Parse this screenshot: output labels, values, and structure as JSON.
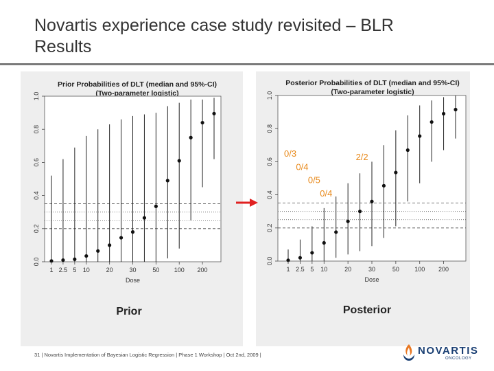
{
  "slide": {
    "title_line1": "Novartis experience case study revisited – BLR",
    "title_line2": "Results",
    "footer": "31 | Novartis Implementation of Bayesian Logistic Regression | Phase 1 Workshop | Oct 2nd, 2009 |",
    "logo_text": "NOVARTIS",
    "logo_sub": "ONCOLOGY",
    "colors": {
      "title": "#333333",
      "arrow": "#e02020",
      "annotation": "#e8891a",
      "logo": "#1a3f73",
      "logo_mark": "#e87722"
    }
  },
  "chart_data": [
    {
      "type": "scatter",
      "name": "prior",
      "title": "Prior Probabilities of DLT (median and 95%-CI)",
      "subtitle": "(Two-parameter logistic)",
      "caption": "Prior",
      "xlabel": "Dose",
      "ylabel": "",
      "categories": [
        "1",
        "2.5",
        "5",
        "10",
        "15",
        "20",
        "25",
        "30",
        "40",
        "50",
        "75",
        "100",
        "150",
        "200",
        "250"
      ],
      "x_tick_labels": [
        "1",
        "2.5",
        "5",
        "10",
        "20",
        "30",
        "50",
        "100",
        "200"
      ],
      "medians": [
        0.005,
        0.01,
        0.015,
        0.035,
        0.065,
        0.1,
        0.145,
        0.18,
        0.265,
        0.335,
        0.49,
        0.61,
        0.75,
        0.84,
        0.895
      ],
      "lower": [
        0.0,
        0.0,
        0.0,
        0.0,
        0.0,
        0.0,
        0.0,
        0.0,
        0.0,
        0.0,
        0.02,
        0.08,
        0.25,
        0.45,
        0.62
      ],
      "upper": [
        0.52,
        0.62,
        0.69,
        0.76,
        0.8,
        0.83,
        0.86,
        0.88,
        0.89,
        0.9,
        0.94,
        0.96,
        0.98,
        0.98,
        0.99
      ],
      "ylim": [
        0.0,
        1.0
      ],
      "yticks": [
        "0.0",
        "0.2",
        "0.4",
        "0.6",
        "0.8",
        "1.0"
      ],
      "ref_lines": {
        "dashed": [
          0.2,
          0.35
        ],
        "dotted": [
          0.25,
          0.3
        ]
      },
      "annotations": []
    },
    {
      "type": "scatter",
      "name": "posterior",
      "title": "Posterior Probabilities of DLT (median and 95%-CI)",
      "subtitle": "(Two-parameter logistic)",
      "caption": "Posterior",
      "xlabel": "Dose",
      "ylabel": "",
      "categories": [
        "1",
        "2.5",
        "5",
        "10",
        "15",
        "20",
        "25",
        "30",
        "40",
        "50",
        "75",
        "100",
        "150",
        "200",
        "250"
      ],
      "x_tick_labels": [
        "1",
        "2.5",
        "5",
        "10",
        "20",
        "30",
        "50",
        "100",
        "200"
      ],
      "medians": [
        0.005,
        0.02,
        0.05,
        0.11,
        0.175,
        0.24,
        0.3,
        0.36,
        0.455,
        0.535,
        0.67,
        0.755,
        0.84,
        0.89,
        0.915
      ],
      "lower": [
        0.0,
        0.0,
        0.0,
        0.0,
        0.02,
        0.04,
        0.06,
        0.09,
        0.14,
        0.21,
        0.36,
        0.47,
        0.6,
        0.67,
        0.74
      ],
      "upper": [
        0.07,
        0.13,
        0.21,
        0.32,
        0.39,
        0.47,
        0.53,
        0.6,
        0.7,
        0.79,
        0.88,
        0.94,
        0.97,
        0.99,
        1.0
      ],
      "ylim": [
        0.0,
        1.0
      ],
      "yticks": [
        "0.0",
        "0.2",
        "0.4",
        "0.6",
        "0.8",
        "1.0"
      ],
      "ref_lines": {
        "dashed": [
          0.2,
          0.35
        ],
        "dotted": [
          0.25,
          0.3
        ]
      },
      "annotations": [
        {
          "text": "0/3",
          "dose": "1",
          "y": 0.63
        },
        {
          "text": "0/4",
          "dose": "2.5",
          "y": 0.55
        },
        {
          "text": "0/5",
          "dose": "5",
          "y": 0.47
        },
        {
          "text": "0/4",
          "dose": "10",
          "y": 0.39
        },
        {
          "text": "2/2",
          "dose": "25",
          "y": 0.61
        }
      ]
    }
  ]
}
